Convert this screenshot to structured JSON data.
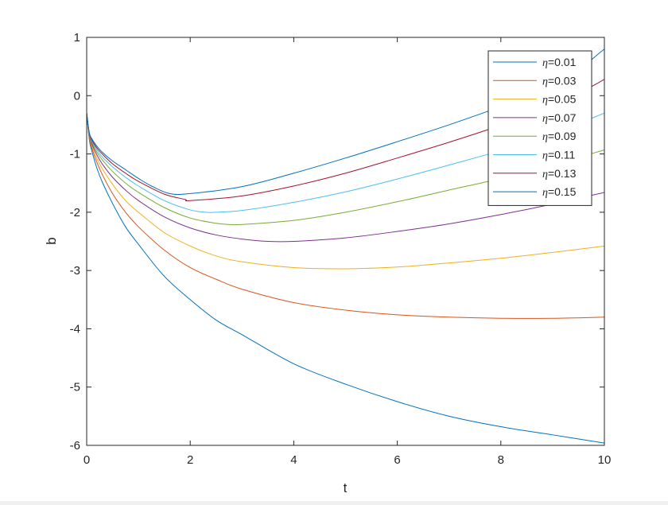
{
  "chart_data": {
    "type": "line",
    "xlabel": "t",
    "ylabel": "b",
    "xlim": [
      0,
      10
    ],
    "ylim": [
      -6,
      1
    ],
    "xticks": [
      0,
      2,
      4,
      6,
      8,
      10
    ],
    "yticks": [
      -6,
      -5,
      -4,
      -3,
      -2,
      -1,
      0,
      1
    ],
    "grid": false,
    "legend_position": "top-right",
    "series": [
      {
        "name": "η=0.01",
        "color": "#0072BD",
        "x": [
          0,
          0.05,
          0.1,
          0.2,
          0.3,
          0.5,
          0.75,
          1,
          1.5,
          2,
          2.5,
          3,
          4,
          5,
          6,
          7,
          8,
          9,
          10
        ],
        "y": [
          -0.3,
          -0.75,
          -0.95,
          -1.25,
          -1.48,
          -1.85,
          -2.25,
          -2.55,
          -3.1,
          -3.5,
          -3.85,
          -4.1,
          -4.6,
          -4.95,
          -5.25,
          -5.5,
          -5.68,
          -5.82,
          -5.96
        ]
      },
      {
        "name": "η=0.03",
        "color": "#D95319",
        "x": [
          0,
          0.05,
          0.1,
          0.2,
          0.3,
          0.5,
          0.75,
          1,
          1.5,
          2,
          2.5,
          3,
          4,
          5,
          6,
          7,
          8,
          9,
          10
        ],
        "y": [
          -0.3,
          -0.72,
          -0.9,
          -1.15,
          -1.35,
          -1.68,
          -2.0,
          -2.25,
          -2.65,
          -2.95,
          -3.15,
          -3.32,
          -3.55,
          -3.68,
          -3.76,
          -3.8,
          -3.82,
          -3.82,
          -3.8
        ]
      },
      {
        "name": "η=0.05",
        "color": "#EDB120",
        "x": [
          0,
          0.05,
          0.1,
          0.2,
          0.3,
          0.5,
          0.75,
          1,
          1.5,
          2,
          2.5,
          3,
          4,
          5,
          6,
          7,
          8,
          9,
          10
        ],
        "y": [
          -0.3,
          -0.7,
          -0.86,
          -1.08,
          -1.25,
          -1.52,
          -1.8,
          -2.0,
          -2.35,
          -2.58,
          -2.75,
          -2.85,
          -2.95,
          -2.97,
          -2.94,
          -2.87,
          -2.79,
          -2.69,
          -2.58
        ]
      },
      {
        "name": "η=0.07",
        "color": "#7E2F8E",
        "x": [
          0,
          0.05,
          0.1,
          0.2,
          0.3,
          0.5,
          0.75,
          1,
          1.5,
          2,
          2.5,
          3,
          3.5,
          4,
          5,
          6,
          7,
          8,
          9,
          10
        ],
        "y": [
          -0.3,
          -0.68,
          -0.83,
          -1.02,
          -1.17,
          -1.4,
          -1.62,
          -1.8,
          -2.08,
          -2.27,
          -2.39,
          -2.46,
          -2.5,
          -2.5,
          -2.44,
          -2.33,
          -2.2,
          -2.04,
          -1.86,
          -1.66
        ]
      },
      {
        "name": "η=0.09",
        "color": "#77AC30",
        "x": [
          0,
          0.05,
          0.1,
          0.2,
          0.3,
          0.5,
          0.75,
          1,
          1.5,
          2,
          2.5,
          2.75,
          3,
          4,
          5,
          6,
          7,
          8,
          9,
          10
        ],
        "y": [
          -0.3,
          -0.66,
          -0.8,
          -0.97,
          -1.1,
          -1.3,
          -1.5,
          -1.66,
          -1.92,
          -2.1,
          -2.19,
          -2.21,
          -2.21,
          -2.14,
          -2.0,
          -1.82,
          -1.62,
          -1.42,
          -1.19,
          -0.93
        ]
      },
      {
        "name": "η=0.11",
        "color": "#4DBEEE",
        "x": [
          0,
          0.05,
          0.1,
          0.2,
          0.3,
          0.5,
          0.75,
          1,
          1.5,
          2,
          2.3,
          2.5,
          3,
          4,
          5,
          6,
          7,
          8,
          9,
          10
        ],
        "y": [
          -0.3,
          -0.65,
          -0.78,
          -0.93,
          -1.05,
          -1.22,
          -1.4,
          -1.55,
          -1.8,
          -1.96,
          -2.0,
          -2.0,
          -1.97,
          -1.83,
          -1.65,
          -1.43,
          -1.19,
          -0.94,
          -0.65,
          -0.3
        ]
      },
      {
        "name": "η=0.13",
        "color": "#A2142F",
        "x": [
          0,
          0.05,
          0.1,
          0.2,
          0.3,
          0.5,
          0.75,
          1,
          1.5,
          1.9,
          2,
          3,
          4,
          5,
          6,
          7,
          8,
          9,
          10
        ],
        "y": [
          -0.3,
          -0.64,
          -0.76,
          -0.9,
          -1.0,
          -1.17,
          -1.33,
          -1.47,
          -1.69,
          -1.78,
          -1.8,
          -1.72,
          -1.55,
          -1.33,
          -1.07,
          -0.8,
          -0.51,
          -0.2,
          0.28
        ]
      },
      {
        "name": "η=0.15",
        "color": "#0072BD",
        "x": [
          0,
          0.05,
          0.1,
          0.2,
          0.3,
          0.5,
          0.75,
          1,
          1.25,
          1.6,
          2,
          3,
          4,
          5,
          6,
          7,
          8,
          9,
          10
        ],
        "y": [
          -0.3,
          -0.63,
          -0.74,
          -0.87,
          -0.97,
          -1.12,
          -1.27,
          -1.42,
          -1.55,
          -1.68,
          -1.68,
          -1.56,
          -1.33,
          -1.07,
          -0.79,
          -0.5,
          -0.19,
          0.12,
          0.8
        ]
      }
    ]
  }
}
